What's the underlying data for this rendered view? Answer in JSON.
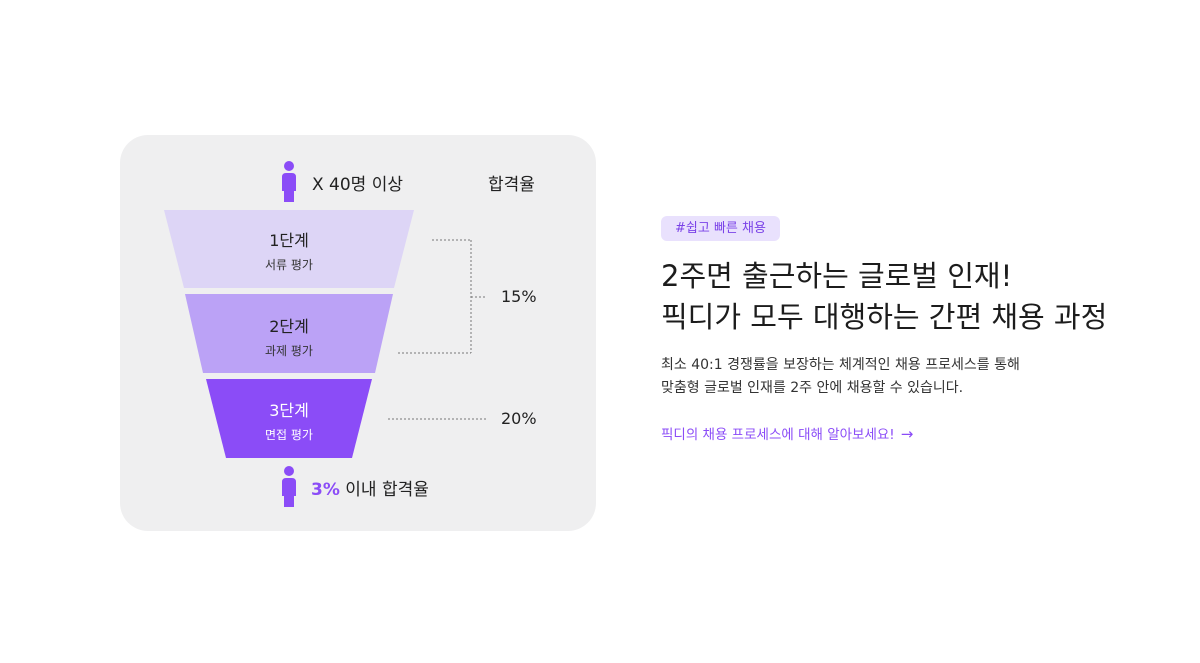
{
  "funnel": {
    "top_caption": "X 40명 이상",
    "rate_header": "합격율",
    "stages": [
      {
        "title": "1단계",
        "subtitle": "서류 평가"
      },
      {
        "title": "2단계",
        "subtitle": "과제 평가"
      },
      {
        "title": "3단계",
        "subtitle": "면접 평가"
      }
    ],
    "rates": {
      "stages_1_2": "15%",
      "stage_3": "20%"
    },
    "bottom_caption_accent": "3%",
    "bottom_caption_rest": " 이내 합격율",
    "colors": {
      "card_bg": "#efeff0",
      "stage1": "#ddd5f6",
      "stage2": "#bba2f6",
      "stage3": "#8b4cf7",
      "person_icon": "#8b4cf7",
      "accent": "#8b4cf7"
    },
    "icons": {
      "top": "person-icon",
      "bottom": "person-icon"
    }
  },
  "content": {
    "tag": "#쉽고 빠른 채용",
    "headline_line1": "2주면 출근하는 글로벌 인재!",
    "headline_line2": "픽디가 모두 대행하는 간편 채용 과정",
    "desc_line1": "최소 40:1 경쟁률을 보장하는 체계적인 채용 프로세스를 통해",
    "desc_line2": "맞춤형 글로벌 인재를 2주 안에 채용할 수 있습니다.",
    "link_label": "픽디의 채용 프로세스에 대해 알아보세요!",
    "link_icon": "arrow-right-icon"
  }
}
